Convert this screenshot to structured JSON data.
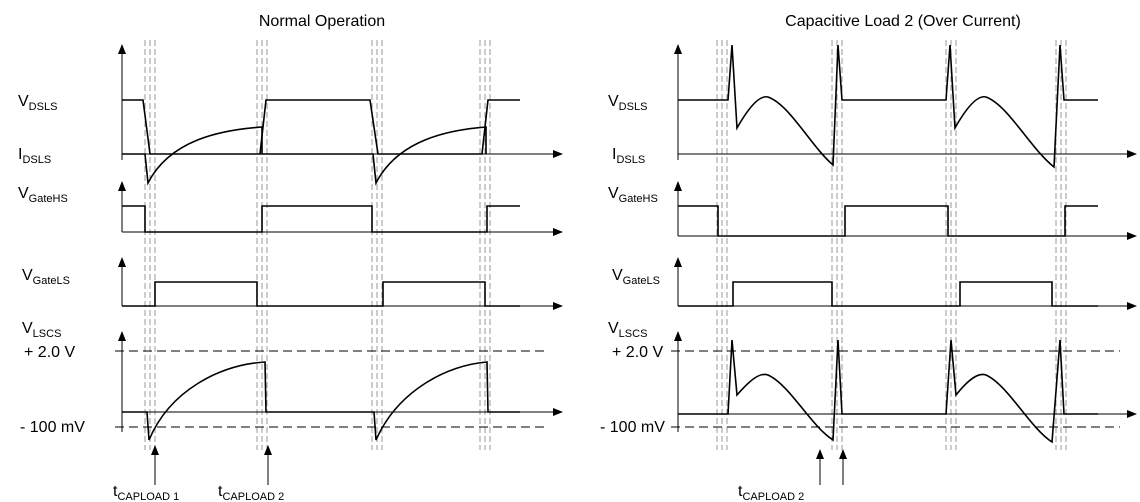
{
  "panels": [
    {
      "title": "Normal Operation",
      "signals": [
        {
          "symbol": "V",
          "subscript": "DSLS"
        },
        {
          "symbol": "I",
          "subscript": "DSLS"
        },
        {
          "symbol": "V",
          "subscript": "GateHS"
        },
        {
          "symbol": "V",
          "subscript": "GateLS"
        },
        {
          "symbol": "V",
          "subscript": "LSCS"
        }
      ],
      "levels": [
        "+ 2.0 V",
        "- 100 mV"
      ],
      "markers": [
        {
          "symbol": "t",
          "subscript": "CAPLOAD 1"
        },
        {
          "symbol": "t",
          "subscript": "CAPLOAD 2"
        }
      ]
    },
    {
      "title": "Capacitive Load 2 (Over Current)",
      "signals": [
        {
          "symbol": "V",
          "subscript": "DSLS"
        },
        {
          "symbol": "I",
          "subscript": "DSLS"
        },
        {
          "symbol": "V",
          "subscript": "GateHS"
        },
        {
          "symbol": "V",
          "subscript": "GateLS"
        },
        {
          "symbol": "V",
          "subscript": "LSCS"
        }
      ],
      "levels": [
        "+ 2.0 V",
        "- 100 mV"
      ],
      "markers": [
        {
          "symbol": "t",
          "subscript": "CAPLOAD 2"
        }
      ]
    }
  ]
}
